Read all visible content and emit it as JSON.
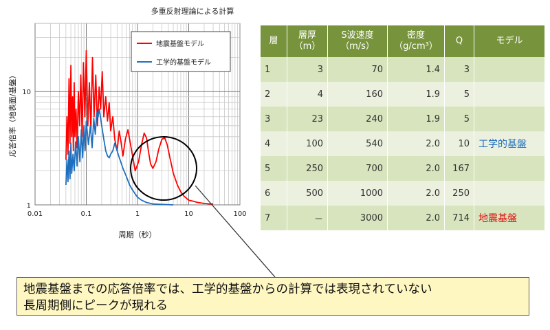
{
  "chart_data": {
    "type": "line",
    "title": "多重反射理論による計算",
    "xlabel": "周期（秒）",
    "ylabel": "応答倍率（地表面/基盤）",
    "xscale": "log",
    "yscale": "log",
    "xlim": [
      0.01,
      100
    ],
    "ylim": [
      1,
      40
    ],
    "xticks": [
      "0.01",
      "0.1",
      "1",
      "10",
      "100"
    ],
    "yticks": [
      "1",
      "10"
    ],
    "grid": true,
    "legend_position": "top-right",
    "series": [
      {
        "name": "地震基盤モデル",
        "color": "#ff0000",
        "x": [
          0.04,
          0.042,
          0.044,
          0.046,
          0.048,
          0.05,
          0.052,
          0.054,
          0.056,
          0.058,
          0.06,
          0.063,
          0.066,
          0.07,
          0.074,
          0.078,
          0.083,
          0.088,
          0.094,
          0.1,
          0.107,
          0.115,
          0.123,
          0.132,
          0.142,
          0.153,
          0.165,
          0.178,
          0.19,
          0.205,
          0.22,
          0.24,
          0.26,
          0.28,
          0.3,
          0.33,
          0.36,
          0.4,
          0.44,
          0.48,
          0.52,
          0.58,
          0.65,
          0.75,
          0.9,
          1.05,
          1.2,
          1.35,
          1.5,
          1.65,
          1.8,
          2.0,
          2.3,
          2.6,
          3.0,
          3.4,
          3.8,
          4.3,
          5.0,
          6.0,
          7.0,
          8.0,
          10.0,
          12.0,
          15.0,
          20.0,
          25.0,
          30.0
        ],
        "values": [
          2.5,
          6.0,
          2.8,
          13.0,
          3.5,
          17.0,
          4.0,
          9.0,
          3.0,
          12.0,
          4.0,
          7.0,
          3.2,
          10.0,
          5.0,
          14.0,
          4.0,
          18.0,
          6.0,
          23.0,
          5.0,
          12.0,
          4.5,
          20.0,
          6.0,
          14.0,
          5.0,
          11.0,
          7.0,
          15.0,
          6.0,
          9.0,
          5.5,
          8.0,
          4.5,
          6.0,
          3.8,
          3.0,
          4.5,
          3.5,
          2.7,
          3.8,
          4.6,
          3.2,
          2.0,
          2.4,
          3.4,
          4.3,
          3.9,
          2.9,
          2.3,
          2.1,
          2.4,
          3.1,
          3.8,
          3.9,
          3.4,
          2.6,
          1.9,
          1.5,
          1.3,
          1.2,
          1.1,
          1.08,
          1.05,
          1.03,
          1.02,
          1.02
        ]
      },
      {
        "name": "工学的基盤モデル",
        "color": "#1f6fbf",
        "x": [
          0.04,
          0.042,
          0.044,
          0.046,
          0.048,
          0.05,
          0.052,
          0.055,
          0.058,
          0.062,
          0.066,
          0.07,
          0.075,
          0.08,
          0.085,
          0.09,
          0.095,
          0.1,
          0.11,
          0.12,
          0.13,
          0.14,
          0.15,
          0.16,
          0.17,
          0.18,
          0.2,
          0.22,
          0.24,
          0.26,
          0.28,
          0.3,
          0.33,
          0.36,
          0.4,
          0.43,
          0.47,
          0.52,
          0.6,
          0.7,
          0.8,
          0.9,
          1.0,
          1.2,
          1.5,
          2.0,
          3.0,
          5.0
        ],
        "values": [
          1.5,
          2.5,
          1.6,
          3.0,
          1.7,
          3.5,
          1.9,
          2.8,
          2.0,
          3.6,
          2.2,
          4.0,
          2.4,
          4.6,
          2.6,
          5.0,
          3.0,
          5.5,
          3.4,
          5.0,
          3.2,
          5.8,
          4.2,
          6.5,
          6.0,
          7.0,
          5.0,
          3.8,
          3.0,
          2.7,
          2.6,
          2.8,
          3.0,
          3.5,
          3.0,
          2.7,
          2.4,
          2.1,
          1.8,
          1.5,
          1.35,
          1.25,
          1.17,
          1.1,
          1.05,
          1.02,
          1.01,
          1.0
        ]
      }
    ]
  },
  "table": {
    "headers": [
      {
        "line1": "層",
        "line2": ""
      },
      {
        "line1": "層厚",
        "line2": "（m）"
      },
      {
        "line1": "S波速度",
        "line2": "（m/s）"
      },
      {
        "line1": "密度",
        "line2": "（g/cm³）"
      },
      {
        "line1": "Q",
        "line2": ""
      },
      {
        "line1": "モデル",
        "line2": ""
      }
    ],
    "rows": [
      [
        "1",
        "3",
        "70",
        "1.4",
        "3",
        ""
      ],
      [
        "2",
        "4",
        "160",
        "1.9",
        "5",
        ""
      ],
      [
        "3",
        "23",
        "240",
        "1.9",
        "5",
        ""
      ],
      [
        "4",
        "100",
        "540",
        "2.0",
        "10",
        "工学的基盤"
      ],
      [
        "5",
        "250",
        "700",
        "2.0",
        "167",
        ""
      ],
      [
        "6",
        "500",
        "1000",
        "2.0",
        "250",
        ""
      ],
      [
        "7",
        "－",
        "3000",
        "2.0",
        "714",
        "地震基盤"
      ]
    ],
    "model_colors": {
      "工学的基盤": "#1f6fbf",
      "地震基盤": "#e01010"
    }
  },
  "callout": {
    "text": "地震基盤までの応答倍率では、工学的基盤からの計算では表現されていない\n長周期側にピークが現れる"
  }
}
